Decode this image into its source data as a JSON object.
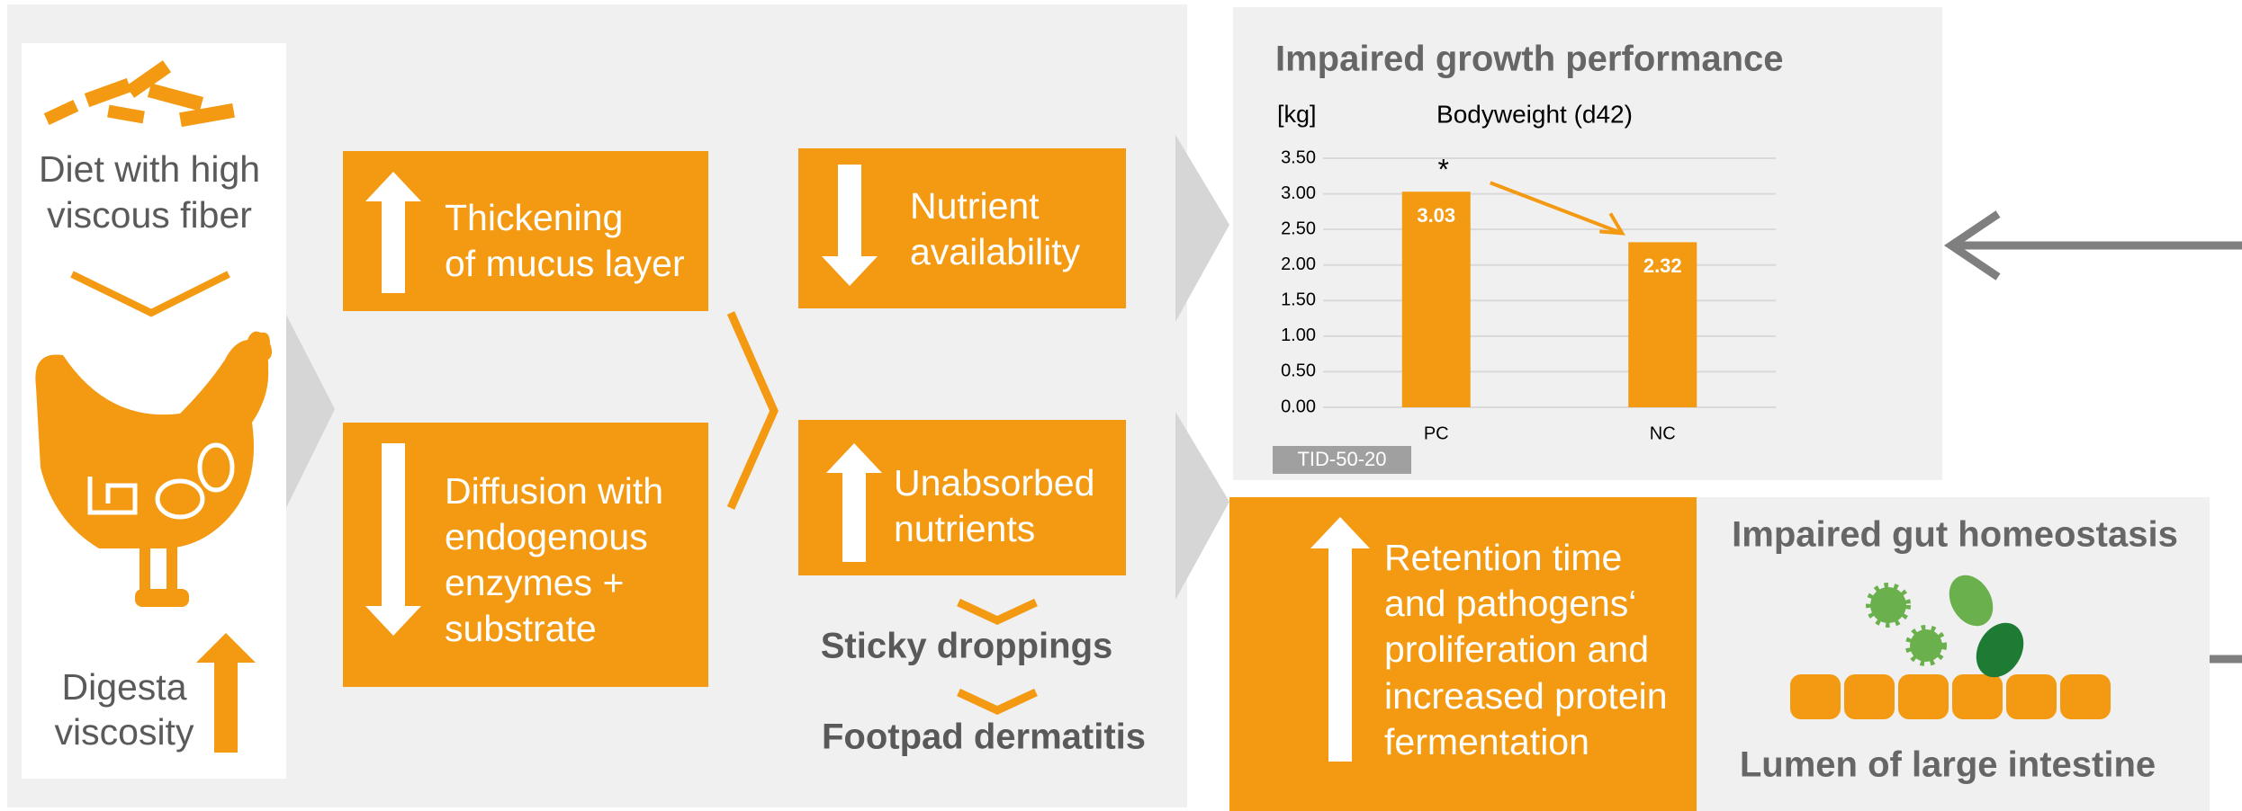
{
  "left_panel": {
    "diet": [
      "Diet with high",
      "viscous fiber"
    ],
    "digesta": [
      "Digesta",
      "viscosity"
    ]
  },
  "boxes": [
    {
      "lines": [
        "Thickening",
        "of mucus layer"
      ]
    },
    {
      "lines": [
        "Diffusion with",
        "endogenous",
        "enzymes +",
        "substrate"
      ]
    },
    {
      "lines": [
        "Nutrient",
        "availability"
      ]
    },
    {
      "lines": [
        "Unabsorbed",
        "nutrients"
      ]
    }
  ],
  "consequences": [
    "Sticky droppings",
    "Footpad dermatitis"
  ],
  "growth": {
    "title": "Impaired growth performance",
    "tag": "TID-50-20",
    "chart_data": {
      "type": "bar",
      "title": "Bodyweight (d42)",
      "y_label": "[kg]",
      "categories": [
        "PC",
        "NC"
      ],
      "values": [
        3.03,
        2.32
      ],
      "color": "#f39a12",
      "annotation": "*",
      "ylim": [
        0,
        3.5
      ],
      "yticks": [
        {
          "value": 0,
          "label": "0.00"
        },
        {
          "value": 0.5,
          "label": "0.50"
        },
        {
          "value": 1,
          "label": "1.00"
        },
        {
          "value": 1.5,
          "label": "1.50"
        },
        {
          "value": 2,
          "label": "2.00"
        },
        {
          "value": 2.5,
          "label": "2.50"
        },
        {
          "value": 3,
          "label": "3.00"
        },
        {
          "value": 3.5,
          "label": "3.50"
        }
      ],
      "grid": true
    }
  },
  "gut": {
    "box": [
      "Retention time",
      "and pathogens‘",
      "proliferation and",
      "increased protein",
      "fermentation"
    ],
    "title": "Impaired gut homeostasis",
    "caption": "Lumen of large intestine"
  }
}
